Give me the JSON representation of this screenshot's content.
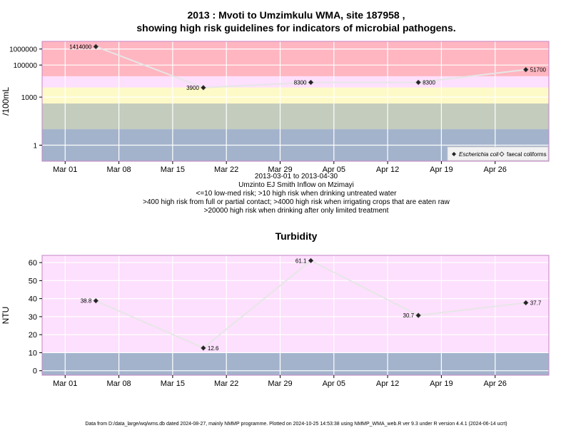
{
  "chart_data": [
    {
      "type": "line",
      "title": "2013 : Mvoti to Umzimkulu WMA, site 187958 ,",
      "subtitle": "showing high risk guidelines for indicators of microbial pathogens.",
      "ylabel": "/100mL",
      "yscale": "log",
      "ylim": [
        0.1,
        3000000
      ],
      "xlim": [
        "2013-02-26",
        "2013-05-03"
      ],
      "x_ticks": [
        "Mar 01",
        "Mar 08",
        "Mar 15",
        "Mar 22",
        "Mar 29",
        "Apr 05",
        "Apr 12",
        "Apr 19",
        "Apr 26"
      ],
      "y_ticks": [
        "1",
        "1000",
        "100000",
        "1000000"
      ],
      "y_tick_values": [
        1,
        1000,
        100000,
        1000000
      ],
      "bands": [
        {
          "from": 0.1,
          "to": 10,
          "color": "#a3b3cc"
        },
        {
          "from": 10,
          "to": 400,
          "color": "#c3ccbd"
        },
        {
          "from": 400,
          "to": 4000,
          "color": "#fefac8"
        },
        {
          "from": 4000,
          "to": 20000,
          "color": "#fde0fd"
        },
        {
          "from": 20000,
          "to": 3000000,
          "color": "#ffb6c1"
        }
      ],
      "series": [
        {
          "name": "Escherichia coli",
          "x": [
            "2013-03-05",
            "2013-03-19",
            "2013-04-02",
            "2013-04-16",
            "2013-04-30"
          ],
          "values": [
            1414000,
            3900,
            8300,
            8300,
            51700
          ],
          "labels": [
            "1414000",
            "3900",
            "8300",
            "8300",
            "51700"
          ]
        }
      ],
      "legend": {
        "position": "bottom-right",
        "entries": [
          "Escherichia coli",
          "faecal coliforms"
        ]
      },
      "caption": [
        "2013-03-01 to 2013-04-30",
        "Umzinto EJ Smith Inflow on Mzimayi",
        "<=10 low-med risk; >10 high risk when drinking untreated water",
        ">400 high risk from full or partial contact; >4000 high risk when irrigating crops that are eaten raw",
        ">20000 high risk when drinking after only limited treatment"
      ],
      "grid": true
    },
    {
      "type": "line",
      "title": "Turbidity",
      "ylabel": "NTU",
      "ylim": [
        -2.5,
        64
      ],
      "xlim": [
        "2013-02-26",
        "2013-05-03"
      ],
      "x_ticks": [
        "Mar 01",
        "Mar 08",
        "Mar 15",
        "Mar 22",
        "Mar 29",
        "Apr 05",
        "Apr 12",
        "Apr 19",
        "Apr 26"
      ],
      "y_ticks": [
        "0",
        "10",
        "20",
        "30",
        "40",
        "50",
        "60"
      ],
      "bands": [
        {
          "from": -2.5,
          "to": 10,
          "color": "#a3b3cc"
        },
        {
          "from": 10,
          "to": 64,
          "color": "#fde0fd"
        }
      ],
      "series": [
        {
          "x": [
            "2013-03-05",
            "2013-03-19",
            "2013-04-02",
            "2013-04-16",
            "2013-04-30"
          ],
          "values": [
            38.8,
            12.6,
            61.1,
            30.7,
            37.7
          ],
          "labels": [
            "38.8",
            "12.6",
            "61.1",
            "30.7",
            "37.7"
          ]
        }
      ],
      "grid": true
    }
  ],
  "footer": "Data from D:/data_large/wq/wms.db dated 2024-08-27, mainly NMMP programme. Plotted on 2024-10-25 14:53:38 using NMMP_WMA_web.R ver 9.3 under R version 4.4.1 (2024-06-14 ucrt)"
}
